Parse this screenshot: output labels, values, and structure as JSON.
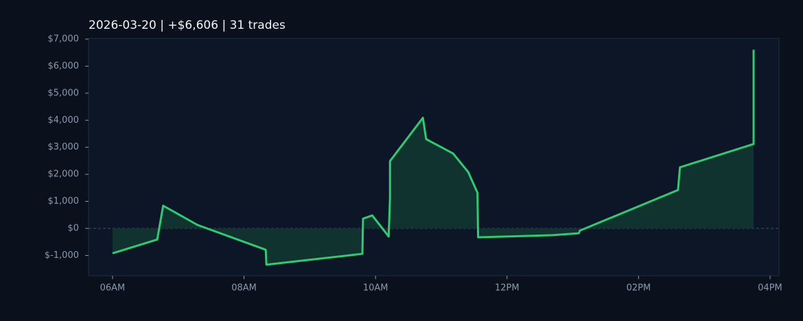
{
  "chart_data": {
    "type": "line",
    "title": "2026-03-20  |  +$6,606  |  31 trades",
    "x": [
      6.0,
      6.68,
      6.77,
      7.29,
      8.33,
      8.34,
      9.8,
      9.81,
      9.95,
      10.2,
      10.22,
      10.22,
      10.72,
      10.77,
      11.18,
      11.41,
      11.55,
      11.56,
      12.69,
      13.09,
      13.11,
      14.6,
      14.63,
      15.75,
      15.75
    ],
    "series": [
      {
        "color": "#2ecc71",
        "fill": "#10332f",
        "values": [
          -920,
          -410,
          840,
          130,
          -790,
          -1340,
          -940,
          360,
          480,
          -300,
          1140,
          2490,
          4090,
          3300,
          2770,
          2080,
          1320,
          -330,
          -250,
          -180,
          -80,
          1420,
          2260,
          3120,
          6606
        ]
      }
    ],
    "xlim": [
      5.635,
      16.136
    ],
    "xticks": [
      {
        "value": 6,
        "label": "06AM"
      },
      {
        "value": 8,
        "label": "08AM"
      },
      {
        "value": 10,
        "label": "10AM"
      },
      {
        "value": 12,
        "label": "12PM"
      },
      {
        "value": 14,
        "label": "02PM"
      },
      {
        "value": 16,
        "label": "04PM"
      }
    ],
    "ylim": [
      -1750,
      7025
    ],
    "yticks": [
      {
        "value": -1000,
        "label": "$-1,000"
      },
      {
        "value": 0,
        "label": "$0"
      },
      {
        "value": 1000,
        "label": "$1,000"
      },
      {
        "value": 2000,
        "label": "$2,000"
      },
      {
        "value": 3000,
        "label": "$3,000"
      },
      {
        "value": 4000,
        "label": "$4,000"
      },
      {
        "value": 5000,
        "label": "$5,000"
      },
      {
        "value": 6000,
        "label": "$6,000"
      },
      {
        "value": 7000,
        "label": "$7,000"
      }
    ]
  }
}
